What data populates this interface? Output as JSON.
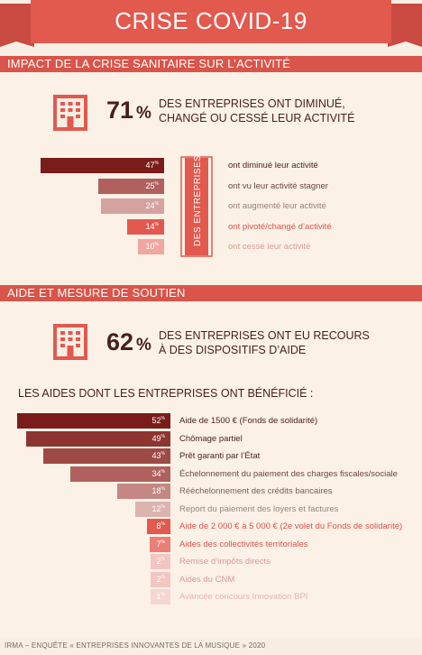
{
  "header": {
    "title": "CRISE COVID-19"
  },
  "section1": {
    "title": "IMPACT DE LA CRISE SANITAIRE SUR L’ACTIVITÉ",
    "stat_value": "71",
    "stat_unit": "%",
    "stat_line1": "DES ENTREPRISES ONT DIMINUÉ,",
    "stat_line2": "CHANGÉ OU CESSÉ LEUR ACTIVITÉ",
    "side_label": "DES ENTREPRISES"
  },
  "section2": {
    "title": "AIDE ET MESURE DE SOUTIEN",
    "stat_value": "62",
    "stat_unit": "%",
    "stat_line1": "DES ENTREPRISES ONT EU RECOURS",
    "stat_line2": "À DES DISPOSITIFS D’AIDE",
    "aids_heading": "LES AIDES DONT LES ENTREPRISES ONT BÉNÉFICIÉ :"
  },
  "footer": {
    "source": "IRMA – ENQUÊTE « ENTREPRISES INNOVANTES DE LA MUSIQUE » 2020"
  },
  "colors": {
    "accent": "#d9544a",
    "dark": "#7a1d1a",
    "background": "#f8efe4"
  },
  "chart_data": [
    {
      "type": "bar",
      "orientation": "horizontal",
      "unit": "%",
      "categories": [
        "ont diminué leur activité",
        "ont vu leur activité stagner",
        "ont augmenté leur activité",
        "ont pivoté/changé d’activité",
        "ont cessé leur activité"
      ],
      "values": [
        47,
        25,
        24,
        14,
        10
      ],
      "colors": [
        "#7a1d1a",
        "#b0615d",
        "#d4a29f",
        "#e25a4f",
        "#f0a7a0"
      ],
      "label_colors": [
        "#4a1e1e",
        "#6a4545",
        "#9a7e7a",
        "#d9544a",
        "#d99b95"
      ]
    },
    {
      "type": "bar",
      "orientation": "horizontal",
      "unit": "%",
      "categories": [
        "Aide de 1500 € (Fonds de solidarité)",
        "Chômage partiel",
        "Prêt garanti par l’État",
        "Échelonnement du paiement des charges fiscales/sociale",
        "Rééchelonnement des crédits bancaires",
        "Report du paiement des loyers et factures",
        "Aide de 2 000 € à 5 000 € (2e volet du Fonds de solidarité)",
        "Aides des collectivités territoriales",
        "Remise d’impôts directs",
        "Aides du CNM",
        "Avancée concours Innovation BPI"
      ],
      "values": [
        52,
        49,
        43,
        34,
        18,
        12,
        8,
        7,
        2,
        2,
        1
      ],
      "colors": [
        "#7a1d1a",
        "#8e3430",
        "#9e4a46",
        "#b0615d",
        "#c48783",
        "#dbb4b0",
        "#e25a4f",
        "#eb7f75",
        "#f3c6c1",
        "#f3c6c1",
        "#f6d6d2"
      ],
      "label_colors": [
        "#4a1e1e",
        "#4a1e1e",
        "#4a1e1e",
        "#6a4545",
        "#7a5c5c",
        "#9a8582",
        "#d9544a",
        "#d9544a",
        "#d99b95",
        "#d99b95",
        "#e2b6b1"
      ]
    }
  ]
}
